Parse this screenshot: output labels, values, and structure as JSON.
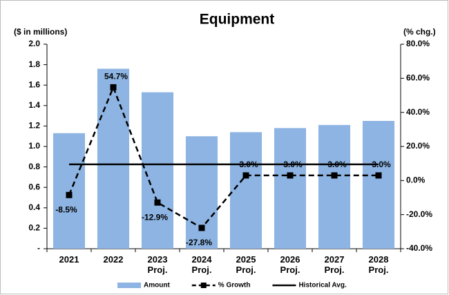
{
  "chart_data": {
    "type": "bar",
    "title": "Equipment",
    "y_label": "($ in millions)",
    "y2_label": "(% chg.)",
    "categories": [
      "2021",
      "2022",
      "2023\nProj.",
      "2024\nProj.",
      "2025\nProj.",
      "2026\nProj.",
      "2027\nProj.",
      "2028\nProj."
    ],
    "series": [
      {
        "name": "Amount",
        "type": "bar",
        "color": "#8db4e2",
        "values": [
          1.13,
          1.76,
          1.53,
          1.1,
          1.14,
          1.18,
          1.21,
          1.25
        ]
      },
      {
        "name": "% Growth",
        "type": "line",
        "axis": "y2",
        "color": "#000000",
        "dashed": true,
        "values": [
          -8.5,
          54.7,
          -12.9,
          -27.8,
          3.0,
          3.0,
          3.0,
          3.0
        ],
        "value_labels": [
          "-8.5%",
          "54.7%",
          "-12.9%",
          "-27.8%",
          "3.0%",
          "3.0%",
          "3.0%",
          "3.0%"
        ]
      },
      {
        "name": "Historical Avg.",
        "type": "line",
        "axis": "y2",
        "color": "#000000",
        "dashed": false,
        "values": [
          9.5,
          9.5,
          9.5,
          9.5,
          9.5,
          9.5,
          9.5,
          9.5
        ]
      }
    ],
    "ylim": [
      0,
      2
    ],
    "yticks": [
      {
        "value": 0,
        "label": "-"
      },
      {
        "value": 0.2,
        "label": "0.2"
      },
      {
        "value": 0.4,
        "label": "0.4"
      },
      {
        "value": 0.6,
        "label": "0.6"
      },
      {
        "value": 0.8,
        "label": "0.8"
      },
      {
        "value": 1.0,
        "label": "1.0"
      },
      {
        "value": 1.2,
        "label": "1.2"
      },
      {
        "value": 1.4,
        "label": "1.4"
      },
      {
        "value": 1.6,
        "label": "1.6"
      },
      {
        "value": 1.8,
        "label": "1.8"
      },
      {
        "value": 2.0,
        "label": "2.0"
      }
    ],
    "y2lim": [
      -40,
      80
    ],
    "y2ticks": [
      {
        "value": -40,
        "label": "-40.0%"
      },
      {
        "value": -20,
        "label": "-20.0%"
      },
      {
        "value": 0,
        "label": "0.0%"
      },
      {
        "value": 20,
        "label": "20.0%"
      },
      {
        "value": 40,
        "label": "40.0%"
      },
      {
        "value": 60,
        "label": "60.0%"
      },
      {
        "value": 80,
        "label": "80.0%"
      }
    ],
    "legend": "bottom"
  }
}
